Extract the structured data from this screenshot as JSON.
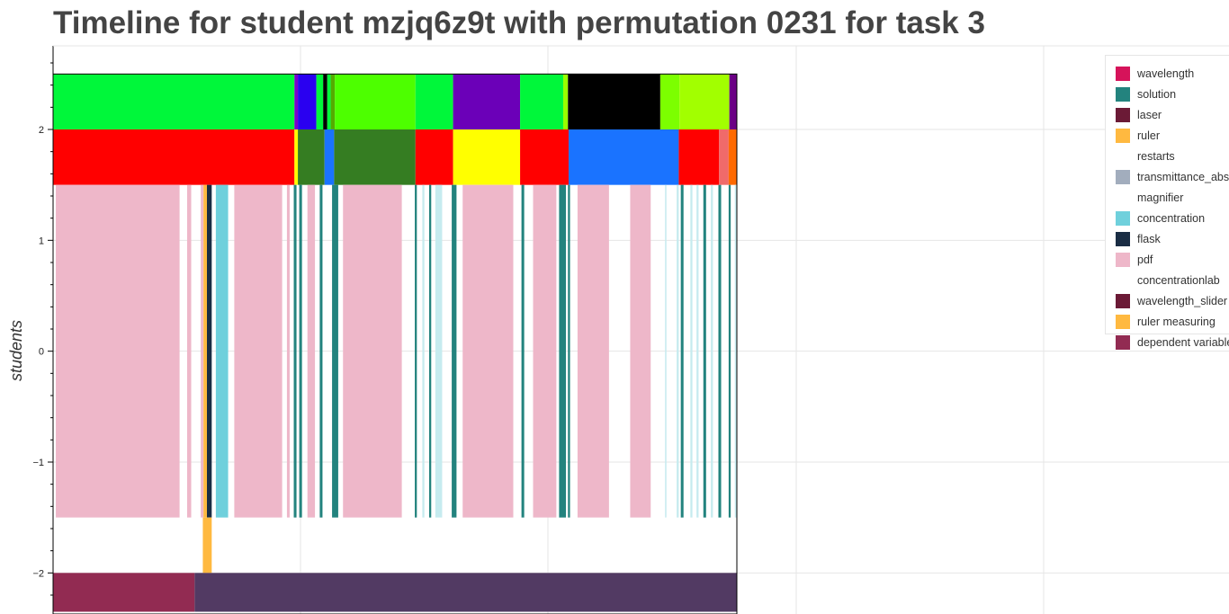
{
  "chart_data": {
    "type": "timeline",
    "title": "Timeline for student mzjq6z9t with permutation 0231 for task 3",
    "ylabel": "students",
    "xlabel": "",
    "yticks": [
      "2",
      "1",
      "0",
      "−1",
      "−2"
    ],
    "ylim": [
      -2.35,
      2.8
    ],
    "xlim": [
      0,
      100
    ],
    "grid": true,
    "legend_position": "top-right",
    "legend": [
      {
        "label": "wavelength",
        "color": "#d6135a"
      },
      {
        "label": "solution",
        "color": "#23837e"
      },
      {
        "label": "laser",
        "color": "#6b1a36"
      },
      {
        "label": "ruler",
        "color": "#ffb940"
      },
      {
        "label": "restarts",
        "color": ""
      },
      {
        "label": "transmittance_absorbance",
        "color": "#a2adbd"
      },
      {
        "label": "magnifier",
        "color": ""
      },
      {
        "label": "concentration",
        "color": "#6fd0dc"
      },
      {
        "label": "flask",
        "color": "#1a2d44"
      },
      {
        "label": "pdf",
        "color": "#eeb7c9"
      },
      {
        "label": "concentrationlab",
        "color": ""
      },
      {
        "label": "wavelength_slider",
        "color": "#6b1a36"
      },
      {
        "label": "ruler measuring",
        "color": "#ffb940"
      },
      {
        "label": "dependent variable",
        "color": "#922b52"
      }
    ],
    "series": [
      {
        "y0": 2.0,
        "y1": 2.5,
        "segments": [
          [
            0,
            35.3,
            "#00f73a"
          ],
          [
            35.3,
            35.8,
            "#7a00cc"
          ],
          [
            35.8,
            38.5,
            "#2a00f0"
          ],
          [
            38.5,
            39.5,
            "#00f73a"
          ],
          [
            39.5,
            40.1,
            "#000000"
          ],
          [
            40.1,
            40.6,
            "#00f73a"
          ],
          [
            40.6,
            41.2,
            "#55aa00"
          ],
          [
            41.2,
            53.0,
            "#4dff00"
          ],
          [
            53.0,
            58.5,
            "#00f73a"
          ],
          [
            58.5,
            68.3,
            "#6b00b8"
          ],
          [
            68.3,
            74.6,
            "#00f73a"
          ],
          [
            74.6,
            75.3,
            "#99ff00"
          ],
          [
            75.3,
            88.8,
            "#000000"
          ],
          [
            88.8,
            91.6,
            "#7cff00"
          ],
          [
            91.6,
            98.9,
            "#a2ff00"
          ],
          [
            98.9,
            100,
            "#6b0085"
          ]
        ]
      },
      {
        "y0": 1.5,
        "y1": 2.0,
        "segments": [
          [
            0,
            35.3,
            "#ff0000"
          ],
          [
            35.3,
            35.8,
            "#ffff00"
          ],
          [
            35.8,
            39.7,
            "#357d22"
          ],
          [
            39.7,
            41.1,
            "#1a73ff"
          ],
          [
            41.1,
            53.0,
            "#357d22"
          ],
          [
            53.0,
            58.5,
            "#ff0000"
          ],
          [
            58.5,
            68.3,
            "#ffff00"
          ],
          [
            68.3,
            75.4,
            "#ff0000"
          ],
          [
            75.4,
            91.5,
            "#1a73ff"
          ],
          [
            91.5,
            97.4,
            "#ff0000"
          ],
          [
            97.4,
            98.8,
            "#f06a6a"
          ],
          [
            98.8,
            100,
            "#ff6a00"
          ]
        ]
      },
      {
        "y0": -1.5,
        "y1": 1.5,
        "segments": [
          [
            0.4,
            18.5,
            "#eeb7c9"
          ],
          [
            19.6,
            20.2,
            "#eeb7c9"
          ],
          [
            21.6,
            22.0,
            "#eeb7c9"
          ],
          [
            22.0,
            22.5,
            "#ffb940"
          ],
          [
            22.5,
            23.2,
            "#1a2d44"
          ],
          [
            23.8,
            25.6,
            "#6fd0dc"
          ],
          [
            26.5,
            33.5,
            "#eeb7c9"
          ],
          [
            34.2,
            34.6,
            "#eeb7c9"
          ],
          [
            35.2,
            35.6,
            "#23837e"
          ],
          [
            36.0,
            36.4,
            "#23837e"
          ],
          [
            37.2,
            38.3,
            "#eeb7c9"
          ],
          [
            39.0,
            39.4,
            "#23837e"
          ],
          [
            40.8,
            41.7,
            "#23837e"
          ],
          [
            42.4,
            51.0,
            "#eeb7c9"
          ],
          [
            52.9,
            53.2,
            "#23837e"
          ],
          [
            54.0,
            54.3,
            "#c6ebef"
          ],
          [
            55.0,
            55.3,
            "#23837e"
          ],
          [
            55.9,
            56.9,
            "#c6ebef"
          ],
          [
            58.3,
            59.0,
            "#23837e"
          ],
          [
            59.9,
            67.3,
            "#eeb7c9"
          ],
          [
            68.5,
            68.9,
            "#23837e"
          ],
          [
            70.2,
            73.6,
            "#eeb7c9"
          ],
          [
            74.0,
            75.0,
            "#23837e"
          ],
          [
            75.3,
            75.6,
            "#23837e"
          ],
          [
            76.7,
            81.3,
            "#eeb7c9"
          ],
          [
            84.4,
            87.4,
            "#eeb7c9"
          ],
          [
            89.5,
            89.7,
            "#c6ebef"
          ],
          [
            91.2,
            91.5,
            "#c6ebef"
          ],
          [
            91.8,
            92.2,
            "#23837e"
          ],
          [
            93.2,
            93.5,
            "#c6ebef"
          ],
          [
            94.1,
            94.4,
            "#c6ebef"
          ],
          [
            95.1,
            95.5,
            "#23837e"
          ],
          [
            96.2,
            96.5,
            "#c6ebef"
          ],
          [
            97.3,
            97.7,
            "#23837e"
          ],
          [
            98.8,
            99.1,
            "#23837e"
          ],
          [
            99.7,
            100,
            "#c6ebef"
          ]
        ]
      },
      {
        "y0": -2.0,
        "y1": -1.5,
        "segments": [
          [
            21.9,
            23.2,
            "#ffb940"
          ]
        ]
      },
      {
        "y0": -2.35,
        "y1": -2.0,
        "segments": [
          [
            0,
            20.7,
            "#922b52"
          ],
          [
            20.7,
            100,
            "#523a63"
          ]
        ]
      }
    ]
  }
}
